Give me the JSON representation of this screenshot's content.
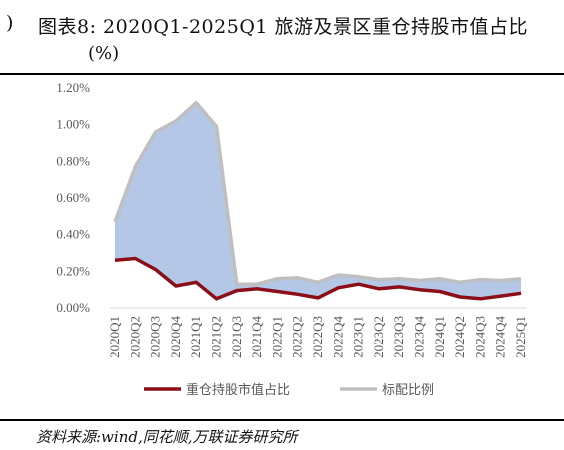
{
  "figure": {
    "prefix": ")",
    "title_line1": "图表8:  2020Q1-2025Q1  旅游及景区重仓持股市值占比",
    "title_line2": "(%)",
    "source": "资料来源:wind,同花顺,万联证券研究所"
  },
  "chart_data": {
    "type": "area",
    "categories": [
      "2020Q1",
      "2020Q2",
      "2020Q3",
      "2020Q4",
      "2021Q1",
      "2021Q2",
      "2021Q3",
      "2021Q4",
      "2022Q1",
      "2022Q2",
      "2022Q3",
      "2022Q4",
      "2023Q1",
      "2023Q2",
      "2023Q3",
      "2023Q4",
      "2024Q1",
      "2024Q2",
      "2024Q3",
      "2024Q4",
      "2025Q1"
    ],
    "ylim": [
      0,
      1.2
    ],
    "yticks": [
      "0.00%",
      "0.20%",
      "0.40%",
      "0.60%",
      "0.80%",
      "1.00%",
      "1.20%"
    ],
    "series": [
      {
        "name": "重仓持股市值占比",
        "color": "#8b0e18",
        "values": [
          0.26,
          0.27,
          0.21,
          0.12,
          0.14,
          0.05,
          0.095,
          0.105,
          0.09,
          0.075,
          0.055,
          0.11,
          0.13,
          0.105,
          0.115,
          0.1,
          0.09,
          0.06,
          0.05,
          0.065,
          0.08
        ]
      },
      {
        "name": "标配比例",
        "color": "#bfbfbf",
        "values": [
          0.47,
          0.77,
          0.96,
          1.02,
          1.12,
          0.99,
          0.13,
          0.13,
          0.16,
          0.165,
          0.14,
          0.18,
          0.17,
          0.155,
          0.16,
          0.15,
          0.16,
          0.14,
          0.155,
          0.15,
          0.16
        ]
      }
    ],
    "fill_color": "#b4c7e7",
    "legend_position": "bottom"
  }
}
